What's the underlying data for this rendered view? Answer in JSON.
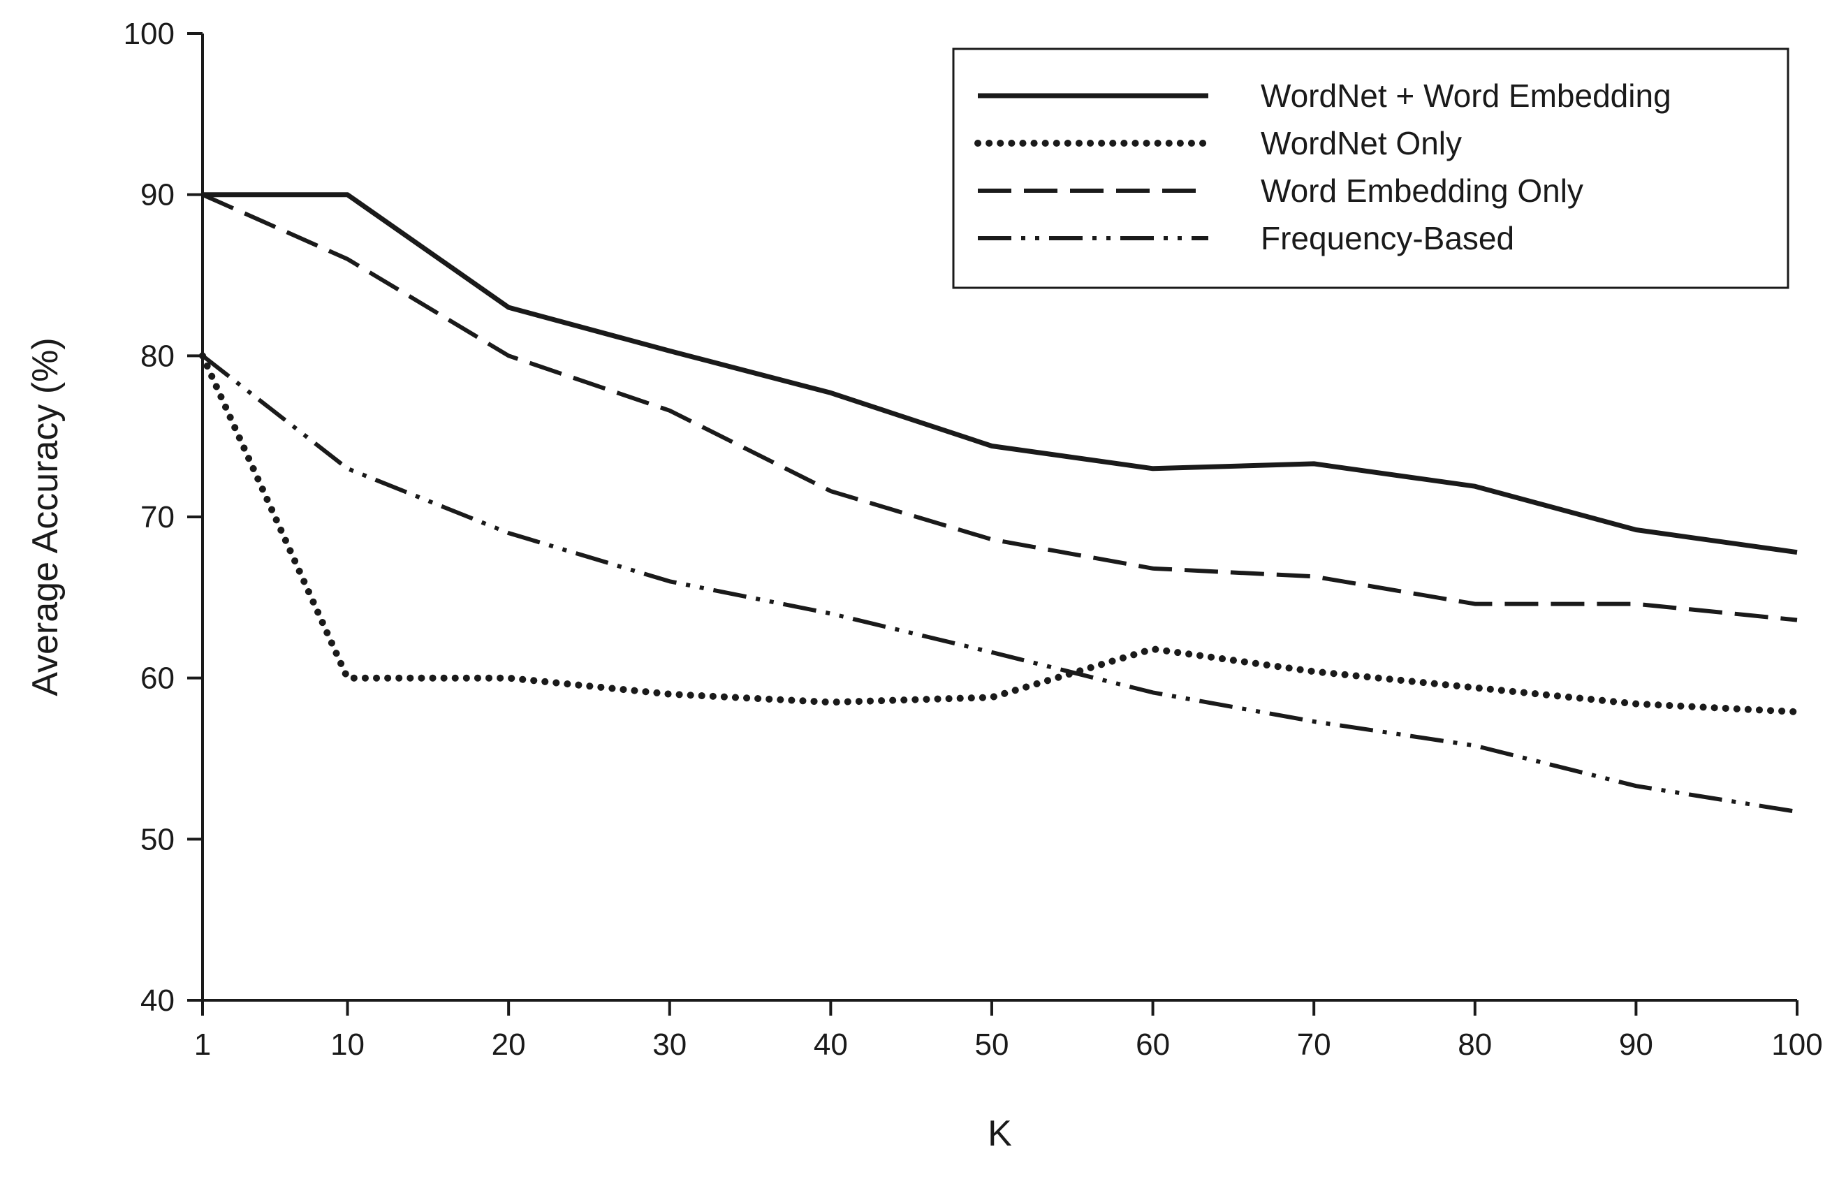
{
  "chart_data": {
    "type": "line",
    "title": "",
    "xlabel": "K",
    "ylabel": "Average Accuracy (%)",
    "x": [
      1,
      10,
      20,
      30,
      40,
      50,
      60,
      70,
      80,
      90,
      100
    ],
    "x_tick_labels": [
      "1",
      "10",
      "20",
      "30",
      "40",
      "50",
      "60",
      "70",
      "80",
      "90",
      "100"
    ],
    "ylim": [
      40,
      100
    ],
    "y_ticks": [
      40,
      50,
      60,
      70,
      80,
      90,
      100
    ],
    "y_tick_labels": [
      "40",
      "50",
      "60",
      "70",
      "80",
      "90",
      "100"
    ],
    "grid": false,
    "legend_position": "top-right",
    "series": [
      {
        "name": "WordNet + Word Embedding",
        "style": "solid",
        "values": [
          90,
          90,
          83,
          80.3,
          77.7,
          74.4,
          73,
          73.3,
          71.9,
          69.2,
          67.8
        ]
      },
      {
        "name": "WordNet Only",
        "style": "dotted",
        "values": [
          80,
          60,
          60,
          59,
          58.5,
          58.8,
          61.8,
          60.4,
          59.4,
          58.4,
          57.9
        ]
      },
      {
        "name": "Word Embedding Only",
        "style": "dashed",
        "values": [
          90,
          86,
          80,
          76.6,
          71.6,
          68.6,
          66.8,
          66.3,
          64.6,
          64.6,
          63.6
        ]
      },
      {
        "name": "Frequency-Based",
        "style": "dash-dot-dot",
        "values": [
          80,
          73,
          69,
          66,
          64,
          61.6,
          59.1,
          57.3,
          55.8,
          53.3,
          51.7
        ]
      }
    ],
    "colors": {
      "line": "#1a1a1a",
      "background": "#ffffff"
    }
  }
}
